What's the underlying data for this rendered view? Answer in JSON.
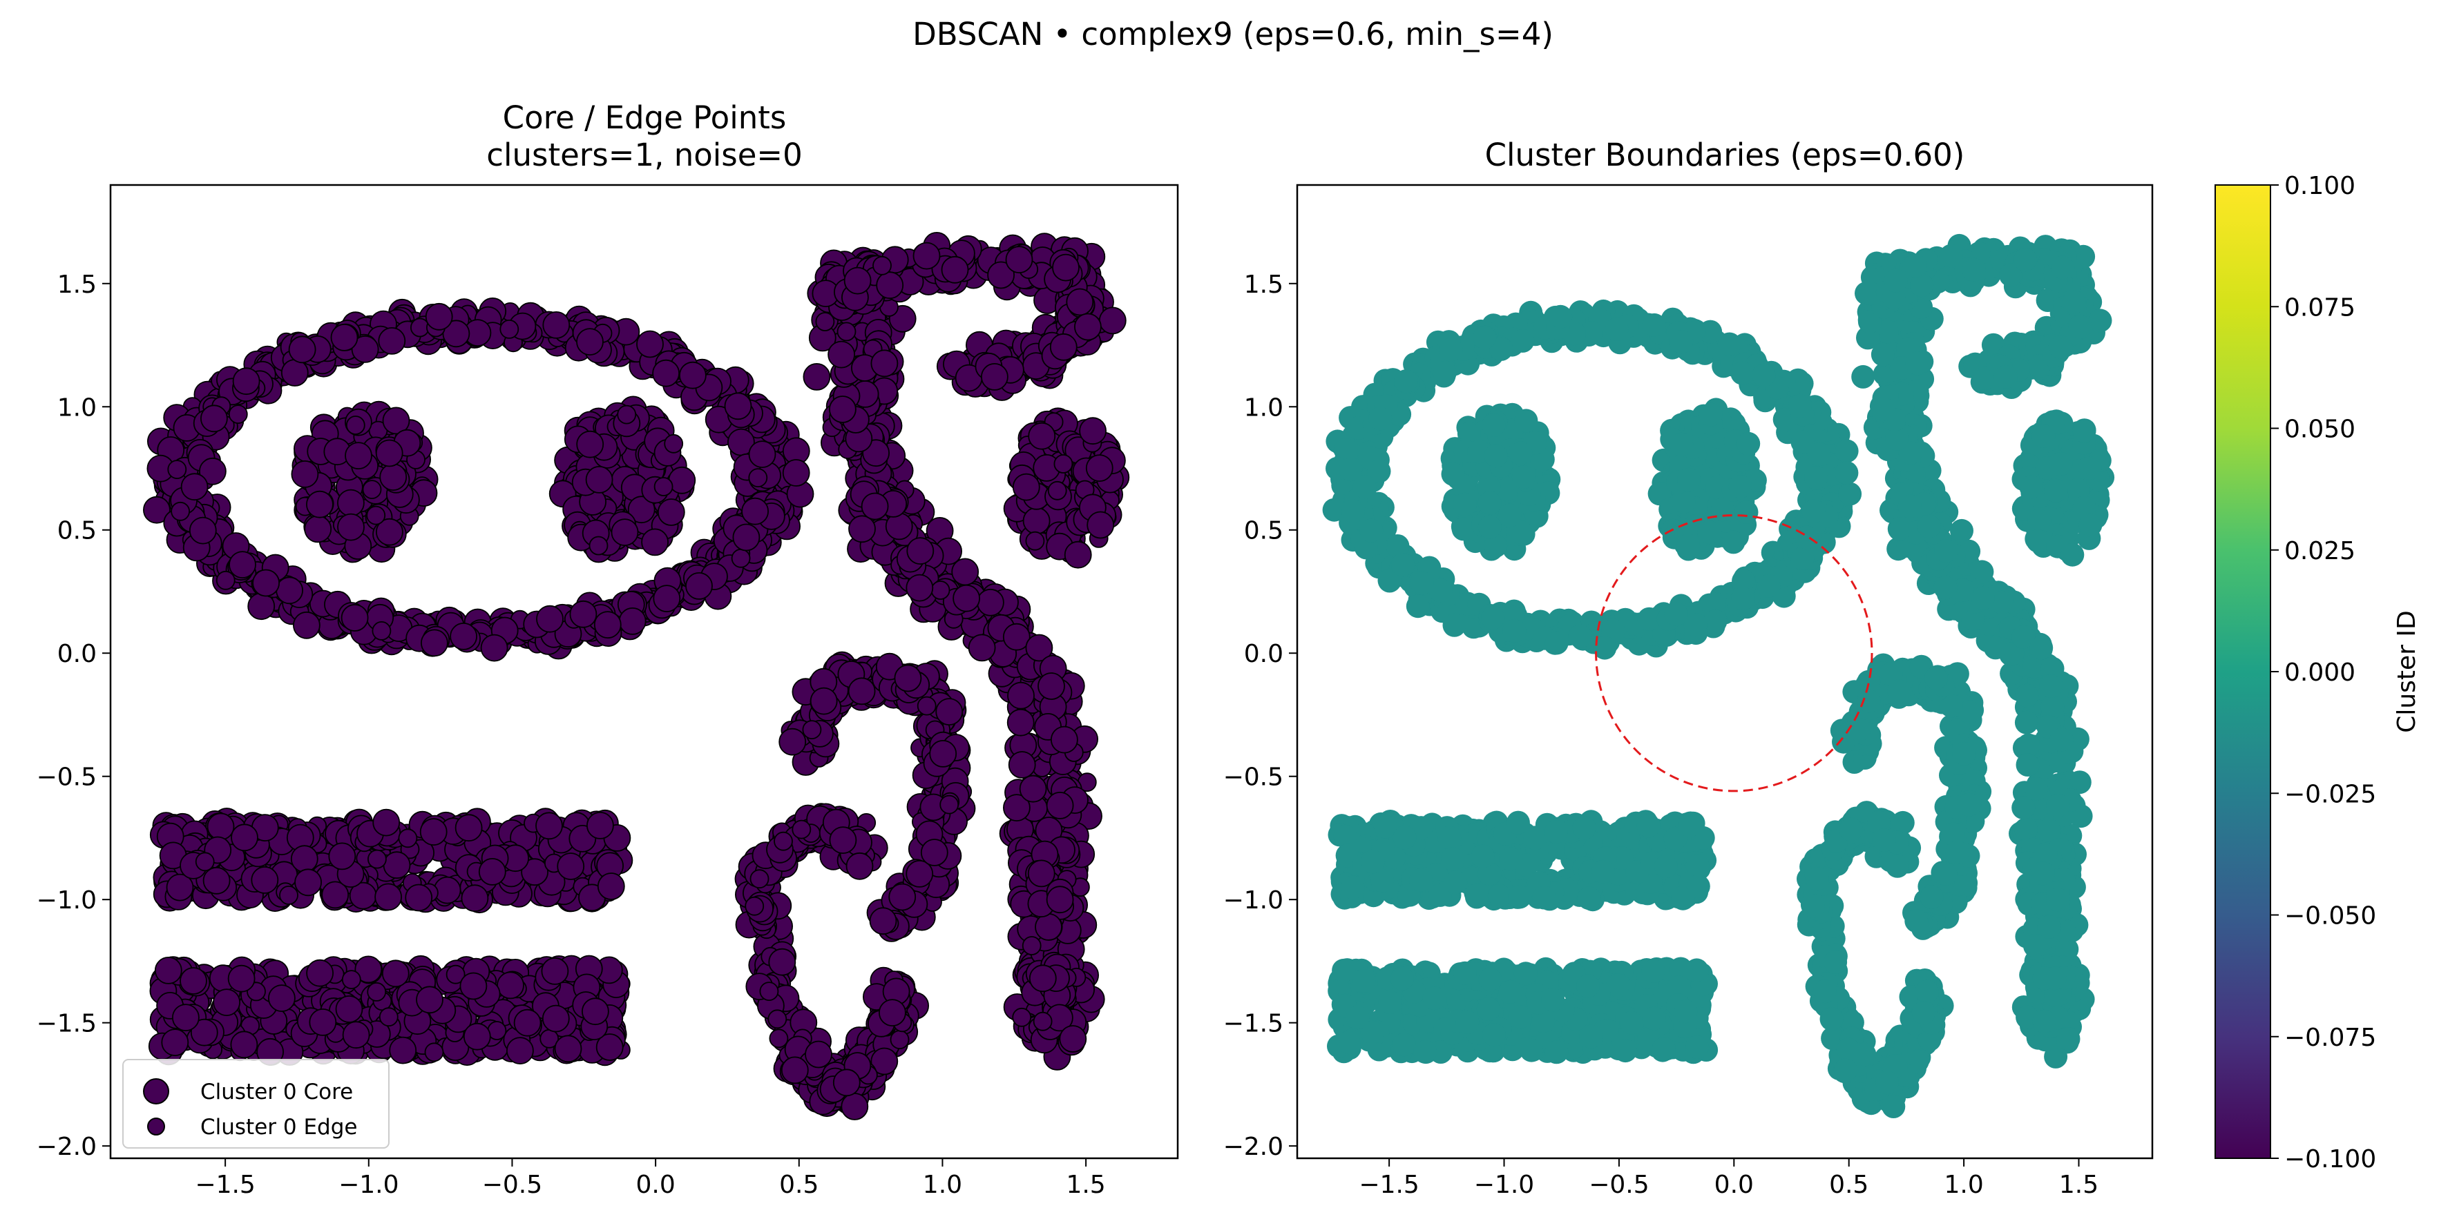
{
  "figure_title": "DBSCAN • complex9  (eps=0.6, min_s=4)",
  "colors": {
    "cluster": "#440154",
    "cluster_boundary": "#21918c",
    "eps_circle": "#e31a1c"
  },
  "chart_data": [
    {
      "type": "scatter",
      "title_lines": [
        "Core / Edge Points",
        "clusters=1, noise=0"
      ],
      "xlim": [
        -1.9,
        1.82
      ],
      "ylim": [
        -2.05,
        1.9
      ],
      "xticks": [
        "−1.5",
        "−1.0",
        "−0.5",
        "0.0",
        "0.5",
        "1.0",
        "1.5"
      ],
      "xtick_values": [
        -1.5,
        -1.0,
        -0.5,
        0.0,
        0.5,
        1.0,
        1.5
      ],
      "yticks": [
        "−2.0",
        "−1.5",
        "−1.0",
        "−0.5",
        "0.0",
        "0.5",
        "1.0",
        "1.5"
      ],
      "ytick_values": [
        -2.0,
        -1.5,
        -1.0,
        -0.5,
        0.0,
        0.5,
        1.0,
        1.5
      ],
      "legend": {
        "position": "lower-left",
        "entries": [
          "Cluster 0 Core",
          "Cluster 0 Edge"
        ]
      },
      "clusters": 1,
      "noise": 0,
      "shapes": [
        {
          "kind": "ring",
          "cx": -0.62,
          "cy": 0.7,
          "rx": 1.02,
          "ry": 0.63,
          "n": 900
        },
        {
          "kind": "blob",
          "cx": -1.02,
          "cy": 0.7,
          "rx": 0.22,
          "ry": 0.3,
          "n": 160
        },
        {
          "kind": "blob",
          "cx": -0.12,
          "cy": 0.7,
          "rx": 0.22,
          "ry": 0.3,
          "n": 160
        },
        {
          "kind": "blob",
          "cx": 1.43,
          "cy": 0.67,
          "rx": 0.18,
          "ry": 0.28,
          "n": 150
        },
        {
          "kind": "rect",
          "x0": -1.72,
          "x1": -0.12,
          "y0": -1.0,
          "y1": -0.68,
          "n": 420
        },
        {
          "kind": "rect",
          "x0": -1.72,
          "x1": -0.12,
          "y0": -1.62,
          "y1": -1.28,
          "n": 430
        },
        {
          "kind": "path",
          "pts": [
            [
              0.68,
              1.58
            ],
            [
              0.72,
              1.3
            ],
            [
              0.72,
              0.95
            ],
            [
              0.8,
              0.5
            ],
            [
              1.0,
              0.25
            ],
            [
              1.3,
              0.0
            ],
            [
              1.38,
              -0.35
            ],
            [
              1.38,
              -0.8
            ],
            [
              1.38,
              -1.2
            ],
            [
              1.4,
              -1.55
            ]
          ],
          "w": 0.17,
          "n": 720
        },
        {
          "kind": "path",
          "pts": [
            [
              0.65,
              1.48
            ],
            [
              0.9,
              1.58
            ],
            [
              1.2,
              1.6
            ],
            [
              1.45,
              1.55
            ],
            [
              1.5,
              1.35
            ],
            [
              1.35,
              1.2
            ],
            [
              1.1,
              1.15
            ]
          ],
          "w": 0.12,
          "n": 300
        },
        {
          "kind": "path",
          "pts": [
            [
              0.5,
              -0.4
            ],
            [
              0.62,
              -0.12
            ],
            [
              0.8,
              -0.1
            ],
            [
              0.98,
              -0.2
            ],
            [
              1.0,
              -0.55
            ],
            [
              0.96,
              -0.9
            ],
            [
              0.82,
              -1.1
            ]
          ],
          "w": 0.1,
          "n": 300
        },
        {
          "kind": "path",
          "pts": [
            [
              0.35,
              -0.95
            ],
            [
              0.42,
              -1.35
            ],
            [
              0.52,
              -1.65
            ],
            [
              0.6,
              -1.78
            ],
            [
              0.72,
              -1.7
            ],
            [
              0.82,
              -1.52
            ],
            [
              0.86,
              -1.38
            ]
          ],
          "w": 0.1,
          "n": 280
        },
        {
          "kind": "path",
          "pts": [
            [
              0.38,
              -0.9
            ],
            [
              0.48,
              -0.72
            ],
            [
              0.62,
              -0.7
            ],
            [
              0.72,
              -0.82
            ]
          ],
          "w": 0.09,
          "n": 110
        }
      ]
    },
    {
      "type": "scatter",
      "title": "Cluster Boundaries  (eps=0.60)",
      "xlim": [
        -1.9,
        1.82
      ],
      "ylim": [
        -2.05,
        1.9
      ],
      "xticks": [
        "−1.5",
        "−1.0",
        "−0.5",
        "0.0",
        "0.5",
        "1.0",
        "1.5"
      ],
      "xtick_values": [
        -1.5,
        -1.0,
        -0.5,
        0.0,
        0.5,
        1.0,
        1.5
      ],
      "yticks": [
        "−2.0",
        "−1.5",
        "−1.0",
        "−0.5",
        "0.0",
        "0.5",
        "1.0",
        "1.5"
      ],
      "ytick_values": [
        -2.0,
        -1.5,
        -1.0,
        -0.5,
        0.0,
        0.5,
        1.0,
        1.5
      ],
      "eps_circle": {
        "cx": 0.0,
        "cy": 0.0,
        "r": 0.6
      }
    },
    {
      "type": "colorbar",
      "label": "Cluster ID",
      "colormap": "viridis",
      "range": [
        -0.1,
        0.1
      ],
      "ticks": [
        "0.100",
        "0.075",
        "0.050",
        "0.025",
        "0.000",
        "−0.025",
        "−0.050",
        "−0.075",
        "−0.100"
      ],
      "tick_values": [
        0.1,
        0.075,
        0.05,
        0.025,
        0.0,
        -0.025,
        -0.05,
        -0.075,
        -0.1
      ]
    }
  ]
}
